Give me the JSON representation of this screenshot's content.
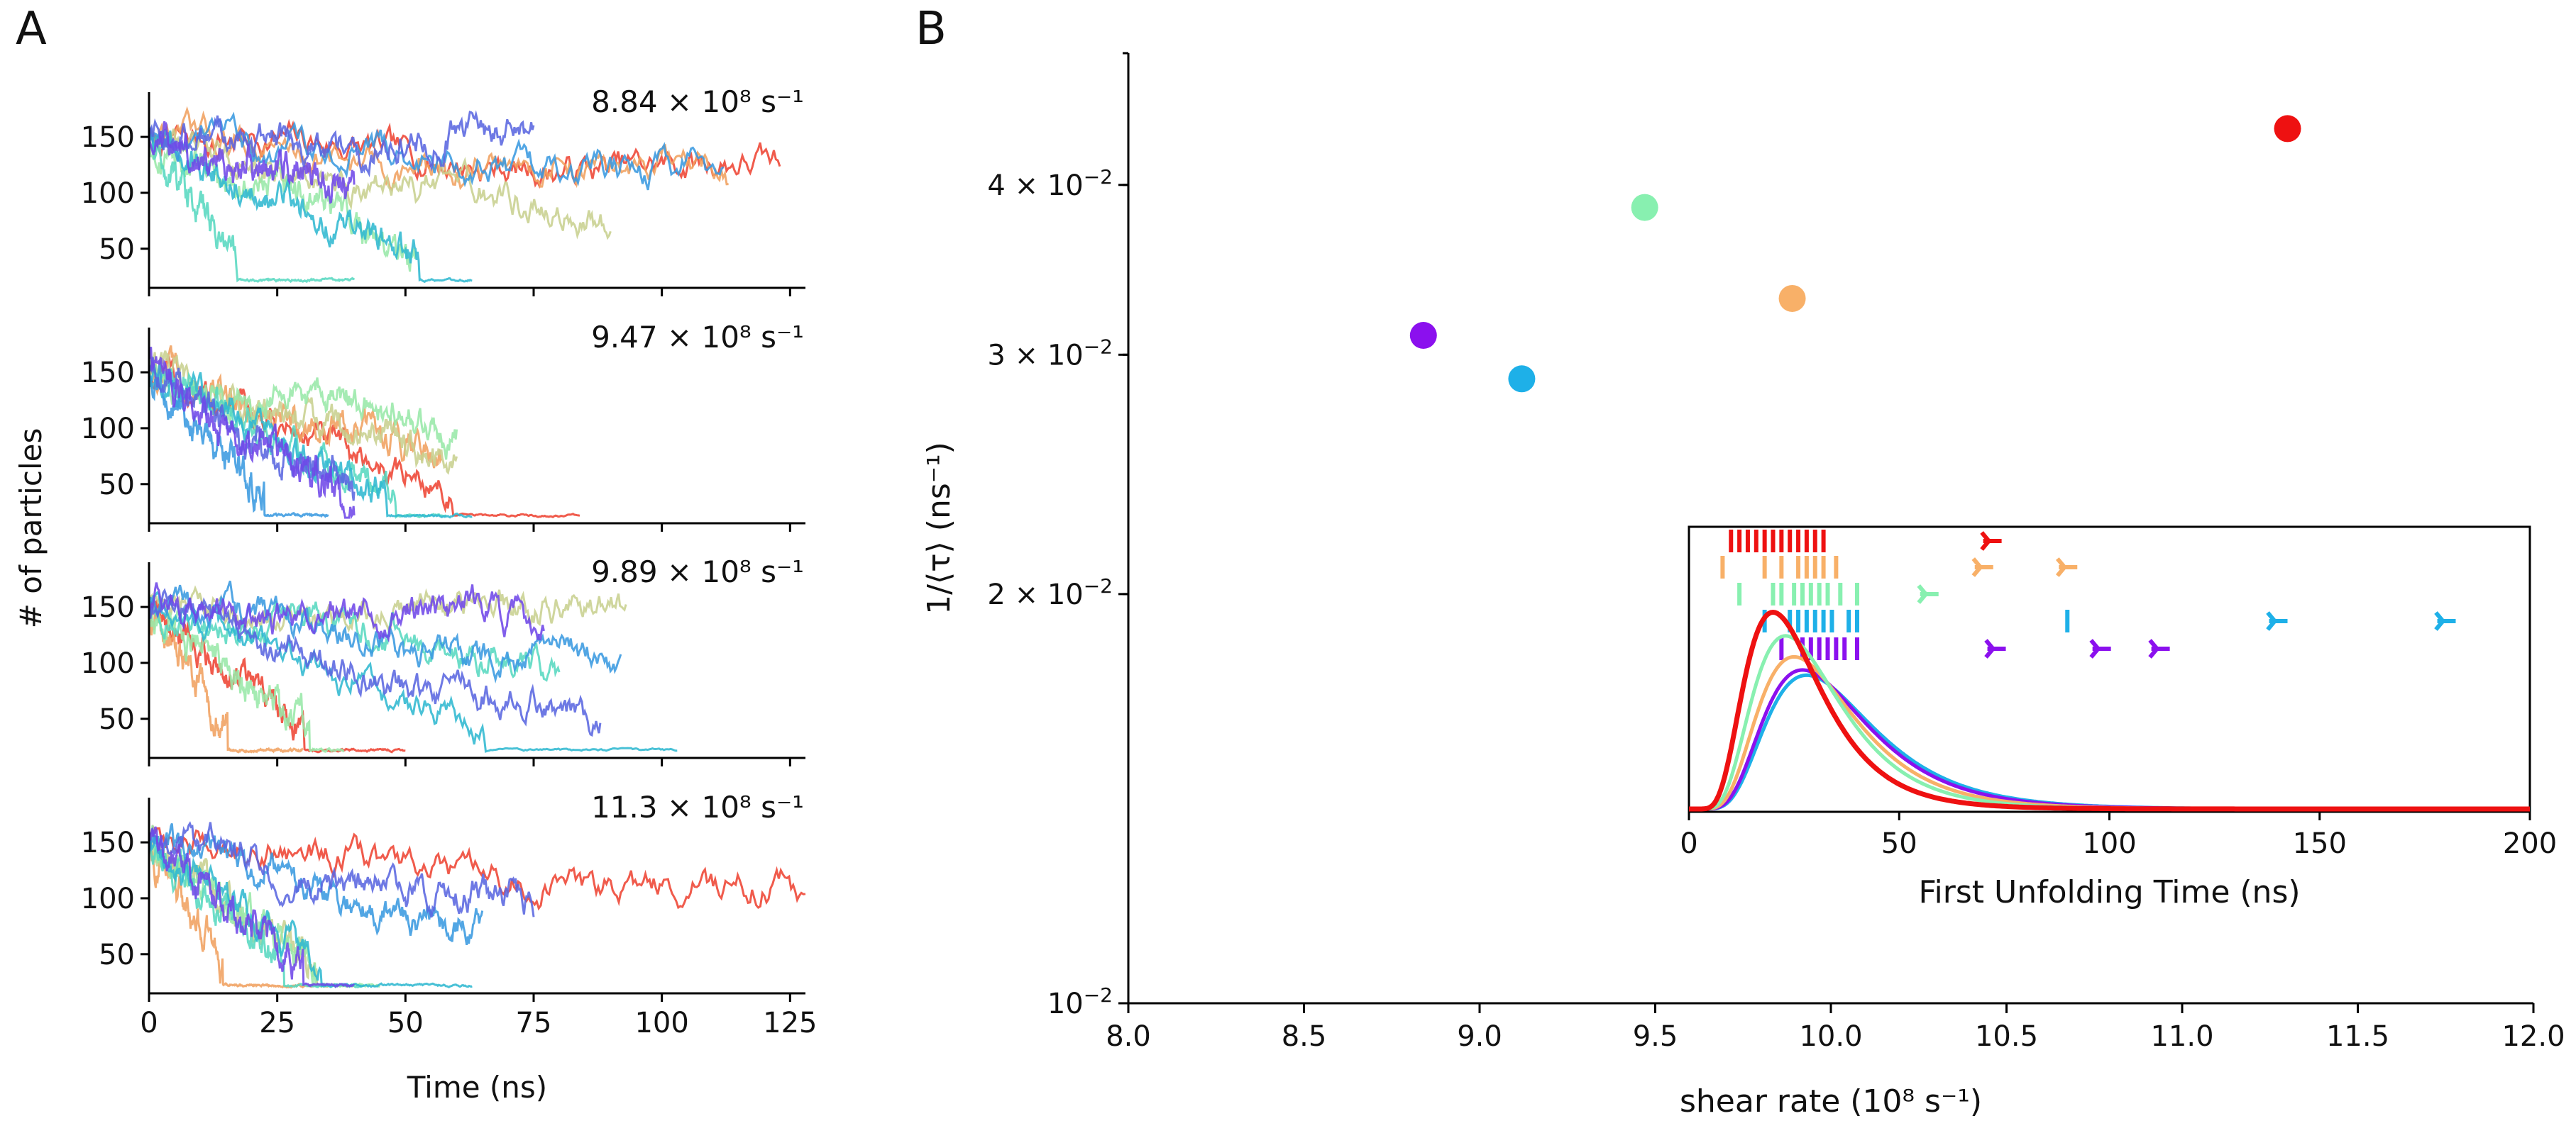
{
  "panel_labels": [
    "A",
    "B"
  ],
  "chart_data": [
    {
      "type": "line",
      "panel": "A",
      "xlabel": "Time (ns)",
      "ylabel": "# of particles",
      "xlim": [
        0,
        128
      ],
      "ylim": [
        15,
        190
      ],
      "xticks": [
        0,
        25,
        50,
        75,
        100,
        125
      ],
      "yticks": [
        50,
        100,
        150
      ],
      "grid": false,
      "series_colors": [
        "#ee4433",
        "#f0a060",
        "#c8d090",
        "#98e8a8",
        "#58d8c0",
        "#30b8d0",
        "#3a9ae0",
        "#5a66e0",
        "#7048e8"
      ],
      "subplots": [
        {
          "annotation": "8.84 × 10⁸ s⁻¹",
          "traces": [
            {
              "end": 123,
              "final": 118
            },
            {
              "end": 113,
              "final": 110
            },
            {
              "end": 90,
              "final": 70
            },
            {
              "end": 52,
              "final": 48
            },
            {
              "end": 40,
              "final": 22
            },
            {
              "end": 63,
              "final": 22
            },
            {
              "end": 112,
              "final": 115
            },
            {
              "end": 75,
              "final": 145
            },
            {
              "end": 40,
              "final": 105
            }
          ]
        },
        {
          "annotation": "9.47 × 10⁸ s⁻¹",
          "traces": [
            {
              "end": 84,
              "final": 22
            },
            {
              "end": 57,
              "final": 75
            },
            {
              "end": 60,
              "final": 70
            },
            {
              "end": 60,
              "final": 100
            },
            {
              "end": 58,
              "final": 22
            },
            {
              "end": 63,
              "final": 22
            },
            {
              "end": 35,
              "final": 22
            },
            {
              "end": 40,
              "final": 40
            },
            {
              "end": 40,
              "final": 30
            }
          ]
        },
        {
          "annotation": "9.89 × 10⁸ s⁻¹",
          "traces": [
            {
              "end": 50,
              "final": 22
            },
            {
              "end": 30,
              "final": 22
            },
            {
              "end": 93,
              "final": 145
            },
            {
              "end": 38,
              "final": 22
            },
            {
              "end": 80,
              "final": 100
            },
            {
              "end": 103,
              "final": 22
            },
            {
              "end": 92,
              "final": 95
            },
            {
              "end": 88,
              "final": 40
            },
            {
              "end": 77,
              "final": 140
            }
          ]
        },
        {
          "annotation": "11.3 × 10⁸ s⁻¹",
          "traces": [
            {
              "end": 128,
              "final": 100
            },
            {
              "end": 35,
              "final": 22
            },
            {
              "end": 40,
              "final": 22
            },
            {
              "end": 45,
              "final": 22
            },
            {
              "end": 42,
              "final": 22
            },
            {
              "end": 63,
              "final": 22
            },
            {
              "end": 65,
              "final": 70
            },
            {
              "end": 75,
              "final": 90
            },
            {
              "end": 40,
              "final": 22
            }
          ]
        }
      ]
    },
    {
      "type": "scatter",
      "panel": "B",
      "xlabel": "shear rate (10⁸ s⁻¹)",
      "ylabel": "1/⟨τ⟩ (ns⁻¹)",
      "xlim": [
        8.0,
        12.0
      ],
      "ylim": [
        0.01,
        0.05
      ],
      "yscale": "log",
      "xticks": [
        8.0,
        8.5,
        9.0,
        9.5,
        10.0,
        10.5,
        11.0,
        11.5,
        12.0
      ],
      "xtick_labels": [
        "8.0",
        "8.5",
        "9.0",
        "9.5",
        "10.0",
        "10.5",
        "11.0",
        "11.5",
        "12.0"
      ],
      "yticks": [
        0.01,
        0.02,
        0.03,
        0.04
      ],
      "ytick_labels": [
        {
          "mantissa": "",
          "exponent": "−2"
        },
        {
          "mantissa": "2 ×",
          "exponent": "−2"
        },
        {
          "mantissa": "3 ×",
          "exponent": "−2"
        },
        {
          "mantissa": "4 ×",
          "exponent": "−2"
        }
      ],
      "ytick_base": "10",
      "grid": false,
      "points": [
        {
          "x": 8.84,
          "y": 0.031,
          "color": "#8b10ee"
        },
        {
          "x": 9.12,
          "y": 0.0288,
          "color": "#1eb0e8"
        },
        {
          "x": 9.47,
          "y": 0.0385,
          "color": "#88f0b0"
        },
        {
          "x": 9.89,
          "y": 0.033,
          "color": "#f8b068"
        },
        {
          "x": 11.3,
          "y": 0.044,
          "color": "#ee1111"
        }
      ]
    },
    {
      "type": "line",
      "panel": "B-inset",
      "xlabel": "First Unfolding Time (ns)",
      "xlim": [
        0,
        200
      ],
      "xticks": [
        0,
        50,
        100,
        150,
        200
      ],
      "rows": [
        {
          "color": "#ee1111",
          "dashes": [
            10,
            12,
            14,
            16,
            18,
            20,
            22,
            24,
            26,
            28,
            30,
            32
          ],
          "markers": [
            72
          ]
        },
        {
          "color": "#f8b068",
          "dashes": [
            8,
            18,
            22,
            26,
            28,
            30,
            32,
            35
          ],
          "markers": [
            70,
            90
          ]
        },
        {
          "color": "#88f0b0",
          "dashes": [
            12,
            20,
            22,
            25,
            27,
            29,
            31,
            33,
            36,
            40
          ],
          "markers": [
            57
          ]
        },
        {
          "color": "#1eb0e8",
          "dashes": [
            18,
            24,
            26,
            28,
            30,
            32,
            34,
            38,
            40,
            90
          ],
          "markers": [
            140,
            180
          ]
        },
        {
          "color": "#8b10ee",
          "dashes": [
            22,
            27,
            29,
            31,
            33,
            35,
            37,
            40
          ],
          "markers": [
            73,
            98,
            112
          ]
        }
      ],
      "curves": [
        {
          "color": "#1eb0e8",
          "mode": 28,
          "peak": 0.51
        },
        {
          "color": "#8b10ee",
          "mode": 27,
          "peak": 0.53
        },
        {
          "color": "#f8b068",
          "mode": 25,
          "peak": 0.58
        },
        {
          "color": "#88f0b0",
          "mode": 23,
          "peak": 0.66
        },
        {
          "color": "#ee1111",
          "mode": 20,
          "peak": 0.75
        }
      ]
    }
  ]
}
